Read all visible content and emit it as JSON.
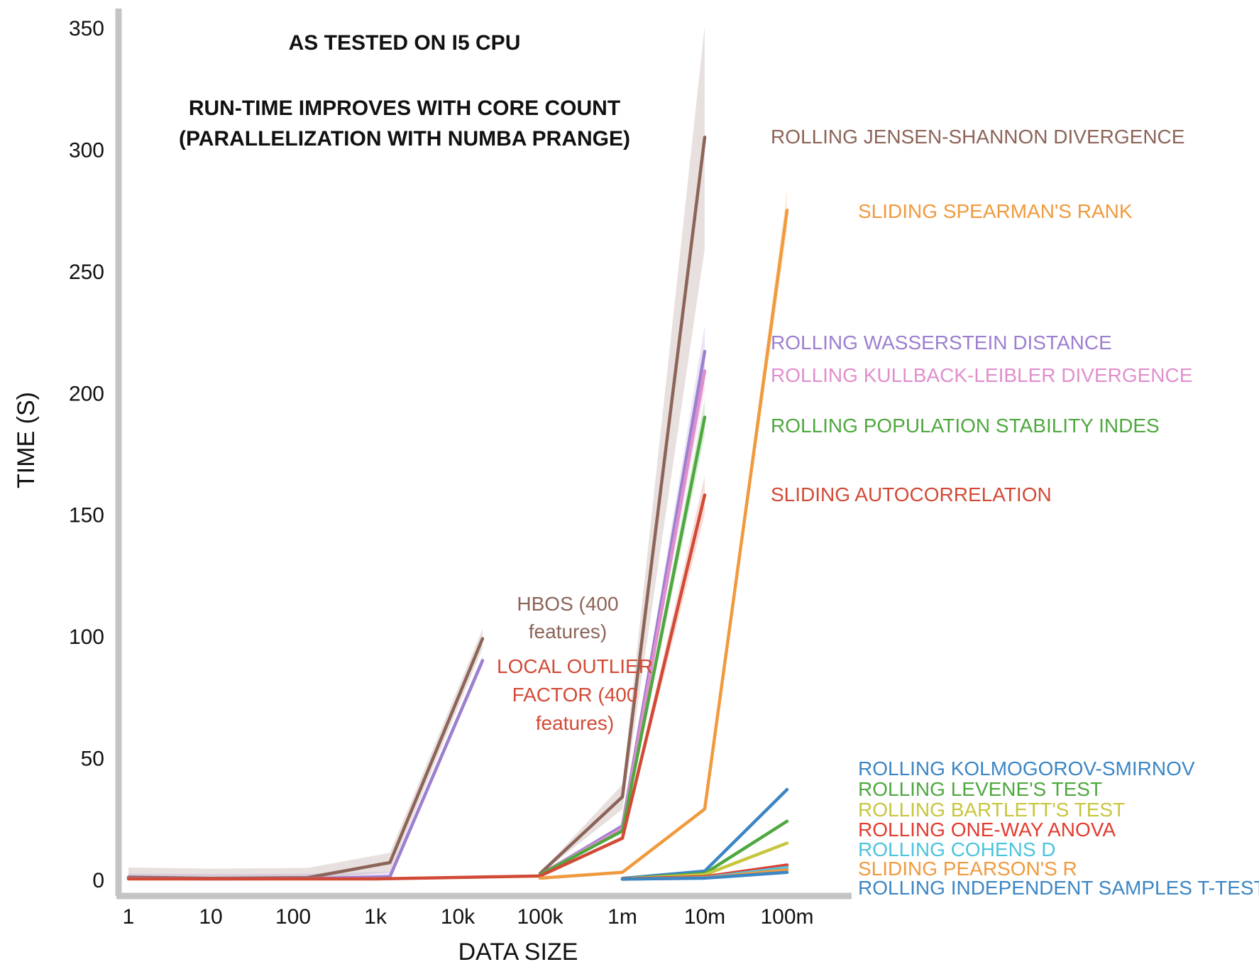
{
  "chart_data": {
    "type": "line",
    "xlabel": "DATA SIZE",
    "ylabel": "TIME (S)",
    "ylim": [
      0,
      350
    ],
    "yticks": [
      0,
      50,
      100,
      150,
      200,
      250,
      300,
      350
    ],
    "x_tick_labels": [
      "1",
      "10",
      "100",
      "1k",
      "10k",
      "100k",
      "1m",
      "10m",
      "100m"
    ],
    "x_scale": "log",
    "grid": false,
    "annotations": [
      "AS TESTED ON I5 CPU",
      "RUN-TIME IMPROVES WITH CORE COUNT",
      "(PARALLELIZATION WITH NUMBA PRANGE)"
    ],
    "series": [
      {
        "name": "HBOS (400 features)",
        "color": "#8c6458",
        "x": [
          1,
          10,
          150,
          1500,
          20000
        ],
        "y": [
          1.0,
          0.5,
          0.8,
          7,
          99
        ],
        "band": 4
      },
      {
        "name": "LOCAL OUTLIER FACTOR (400 features)",
        "color": "#9d7fd0",
        "x": [
          1,
          10,
          150,
          1500,
          20000
        ],
        "y": [
          0.5,
          0.3,
          0.4,
          1.2,
          90
        ],
        "band": 2
      },
      {
        "name": "ROLLING JENSEN-SHANNON DIVERGENCE",
        "color": "#8c6458",
        "x": [
          100000,
          1000000,
          10000000
        ],
        "y": [
          2.5,
          34,
          305
        ],
        "band": 0.15
      },
      {
        "name": "ROLLING WASSERSTEIN DISTANCE",
        "color": "#9d7fd0",
        "x": [
          100000,
          1000000,
          10000000
        ],
        "y": [
          2,
          22,
          217
        ],
        "band": 0.05
      },
      {
        "name": "ROLLING KULLBACK-LEIBLER DIVERGENCE",
        "color": "#e08fcd",
        "x": [
          100000,
          1000000,
          10000000
        ],
        "y": [
          2,
          21,
          209
        ],
        "band": 0.04
      },
      {
        "name": "ROLLING POPULATION STABILITY INDES",
        "color": "#4ea83f",
        "x": [
          100000,
          1000000,
          10000000
        ],
        "y": [
          2,
          20,
          190
        ],
        "band": 0.04
      },
      {
        "name": "SLIDING AUTOCORRELATION",
        "color": "#d24a36",
        "x": [
          1,
          1000,
          100000,
          1000000,
          10000000
        ],
        "y": [
          0.3,
          0.3,
          1.5,
          17,
          158
        ],
        "band": 0.05
      },
      {
        "name": "SLIDING SPEARMAN'S RANK",
        "color": "#f09a3e",
        "x": [
          100000,
          1000000,
          10000000,
          100000000
        ],
        "y": [
          0.6,
          3,
          29,
          275
        ],
        "band": 0.03
      },
      {
        "name": "ROLLING KOLMOGOROV-SMIRNOV",
        "color": "#3c86c4",
        "x": [
          1000000,
          10000000,
          100000000
        ],
        "y": [
          0.5,
          3.5,
          37
        ],
        "band": 0
      },
      {
        "name": "ROLLING LEVENE'S TEST",
        "color": "#4ea83f",
        "x": [
          1000000,
          10000000,
          100000000
        ],
        "y": [
          0.3,
          2.5,
          24
        ],
        "band": 0
      },
      {
        "name": "ROLLING BARTLETT'S TEST",
        "color": "#c7c63f",
        "x": [
          1000000,
          10000000,
          100000000
        ],
        "y": [
          0.3,
          2,
          15
        ],
        "band": 0
      },
      {
        "name": "ROLLING ONE-WAY ANOVA",
        "color": "#e33b2f",
        "x": [
          1000000,
          10000000,
          100000000
        ],
        "y": [
          0.3,
          1.2,
          6
        ],
        "band": 0
      },
      {
        "name": "ROLLING COHENS D",
        "color": "#4cc4dd",
        "x": [
          1000000,
          10000000,
          100000000
        ],
        "y": [
          0.2,
          0.8,
          5
        ],
        "band": 0
      },
      {
        "name": "SLIDING PEARSON'S R",
        "color": "#f09a3e",
        "x": [
          1000000,
          10000000,
          100000000
        ],
        "y": [
          0.2,
          0.7,
          4
        ],
        "band": 0
      },
      {
        "name": "ROLLING INDEPENDENT SAMPLES T-TEST",
        "color": "#3c86c4",
        "x": [
          1000000,
          10000000,
          100000000
        ],
        "y": [
          0.2,
          0.6,
          3
        ],
        "band": 0
      }
    ],
    "labels": [
      {
        "text": "ROLLING JENSEN-SHANNON DIVERGENCE",
        "color": "#8c6458"
      },
      {
        "text": "SLIDING SPEARMAN'S RANK",
        "color": "#f09a3e"
      },
      {
        "text": "ROLLING WASSERSTEIN DISTANCE",
        "color": "#9d7fd0"
      },
      {
        "text": "ROLLING KULLBACK-LEIBLER DIVERGENCE",
        "color": "#e08fcd"
      },
      {
        "text": "ROLLING POPULATION STABILITY INDES",
        "color": "#4ea83f"
      },
      {
        "text": "SLIDING AUTOCORRELATION",
        "color": "#d24a36"
      },
      {
        "text": "HBOS (400",
        "color": "#8c6458"
      },
      {
        "text": "features)",
        "color": "#8c6458"
      },
      {
        "text": "LOCAL OUTLIER",
        "color": "#d24a36"
      },
      {
        "text": "FACTOR (400",
        "color": "#d24a36"
      },
      {
        "text": "features)",
        "color": "#d24a36"
      },
      {
        "text": "ROLLING KOLMOGOROV-SMIRNOV",
        "color": "#3c86c4"
      },
      {
        "text": "ROLLING LEVENE'S TEST",
        "color": "#4ea83f"
      },
      {
        "text": "ROLLING BARTLETT'S TEST",
        "color": "#c7c63f"
      },
      {
        "text": "ROLLING ONE-WAY ANOVA",
        "color": "#e33b2f"
      },
      {
        "text": "ROLLING COHENS D",
        "color": "#4cc4dd"
      },
      {
        "text": "SLIDING PEARSON'S R",
        "color": "#f09a3e"
      },
      {
        "text": "ROLLING INDEPENDENT SAMPLES T-TEST",
        "color": "#3c86c4"
      }
    ]
  }
}
